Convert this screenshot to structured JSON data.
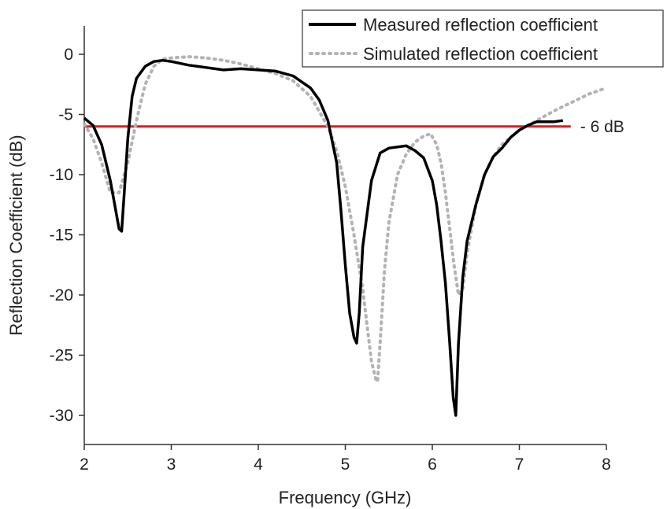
{
  "chart_data": {
    "type": "line",
    "title": "",
    "xlabel": "Frequency (GHz)",
    "ylabel": "Reflection Coefficient (dB)",
    "xlim": [
      2,
      8
    ],
    "ylim": [
      -32,
      2
    ],
    "xticks": [
      2,
      3,
      4,
      5,
      6,
      7,
      8
    ],
    "yticks": [
      0,
      -5,
      -10,
      -15,
      -20,
      -25,
      -30
    ],
    "xtick_labels": [
      "2",
      "3",
      "4",
      "5",
      "6",
      "7",
      "8"
    ],
    "ytick_labels": [
      "0",
      "-5",
      "-10",
      "-15",
      "-20",
      "-25",
      "-30"
    ],
    "grid": false,
    "legend_position": "top-right",
    "series": [
      {
        "name": "Measured reflection coefficient",
        "style": "solid",
        "color": "#000000",
        "x": [
          2.0,
          2.1,
          2.2,
          2.3,
          2.35,
          2.4,
          2.43,
          2.46,
          2.5,
          2.55,
          2.6,
          2.7,
          2.8,
          2.9,
          3.0,
          3.2,
          3.4,
          3.6,
          3.8,
          4.0,
          4.2,
          4.4,
          4.6,
          4.7,
          4.8,
          4.9,
          4.95,
          5.0,
          5.05,
          5.1,
          5.13,
          5.16,
          5.2,
          5.3,
          5.4,
          5.5,
          5.6,
          5.7,
          5.8,
          5.9,
          6.0,
          6.05,
          6.1,
          6.15,
          6.2,
          6.24,
          6.27,
          6.3,
          6.35,
          6.4,
          6.5,
          6.6,
          6.7,
          6.8,
          6.9,
          7.0,
          7.1,
          7.2,
          7.3,
          7.4,
          7.5
        ],
        "y": [
          -5.3,
          -5.9,
          -7.5,
          -10.5,
          -12.5,
          -14.5,
          -14.7,
          -11.5,
          -7.0,
          -3.5,
          -2.0,
          -1.0,
          -0.6,
          -0.5,
          -0.6,
          -0.9,
          -1.1,
          -1.3,
          -1.2,
          -1.3,
          -1.4,
          -1.8,
          -2.8,
          -3.8,
          -5.5,
          -9.0,
          -13.0,
          -17.5,
          -21.5,
          -23.5,
          -24.0,
          -21.5,
          -16.0,
          -10.5,
          -8.2,
          -7.8,
          -7.7,
          -7.6,
          -8.0,
          -8.6,
          -10.5,
          -12.5,
          -15.5,
          -19.0,
          -24.0,
          -28.5,
          -30.0,
          -24.0,
          -18.5,
          -15.5,
          -12.5,
          -10.0,
          -8.5,
          -7.8,
          -6.9,
          -6.3,
          -5.9,
          -5.6,
          -5.6,
          -5.6,
          -5.5
        ]
      },
      {
        "name": "Simulated reflection coefficient",
        "style": "dotted",
        "color": "#b3b3b3",
        "x": [
          2.0,
          2.1,
          2.2,
          2.3,
          2.4,
          2.5,
          2.6,
          2.7,
          2.8,
          2.9,
          3.0,
          3.2,
          3.4,
          3.6,
          3.8,
          4.0,
          4.2,
          4.4,
          4.6,
          4.8,
          4.9,
          5.0,
          5.1,
          5.2,
          5.25,
          5.3,
          5.35,
          5.37,
          5.4,
          5.45,
          5.5,
          5.6,
          5.7,
          5.8,
          5.9,
          5.98,
          6.05,
          6.1,
          6.15,
          6.2,
          6.25,
          6.3,
          6.35,
          6.4,
          6.5,
          6.6,
          6.7,
          6.8,
          6.9,
          7.0,
          7.2,
          7.4,
          7.6,
          7.8,
          8.0
        ],
        "y": [
          -5.8,
          -7.0,
          -9.0,
          -11.5,
          -11.5,
          -9.0,
          -5.5,
          -2.5,
          -1.0,
          -0.4,
          -0.3,
          -0.2,
          -0.3,
          -0.5,
          -0.8,
          -1.2,
          -1.6,
          -2.2,
          -3.5,
          -6.0,
          -8.0,
          -11.0,
          -15.0,
          -19.5,
          -22.5,
          -25.5,
          -27.0,
          -27.2,
          -24.0,
          -18.0,
          -14.0,
          -10.0,
          -8.3,
          -7.3,
          -6.8,
          -6.6,
          -7.5,
          -9.0,
          -11.5,
          -14.5,
          -17.5,
          -20.0,
          -19.5,
          -16.5,
          -12.5,
          -10.0,
          -8.5,
          -7.5,
          -6.9,
          -6.3,
          -5.5,
          -4.7,
          -4.0,
          -3.3,
          -2.8
        ]
      }
    ],
    "annotations": [
      {
        "text": "- 6 dB",
        "type": "hline",
        "y": -6,
        "x_range": [
          2.0,
          7.5
        ],
        "color": "#e31a1c"
      }
    ]
  }
}
